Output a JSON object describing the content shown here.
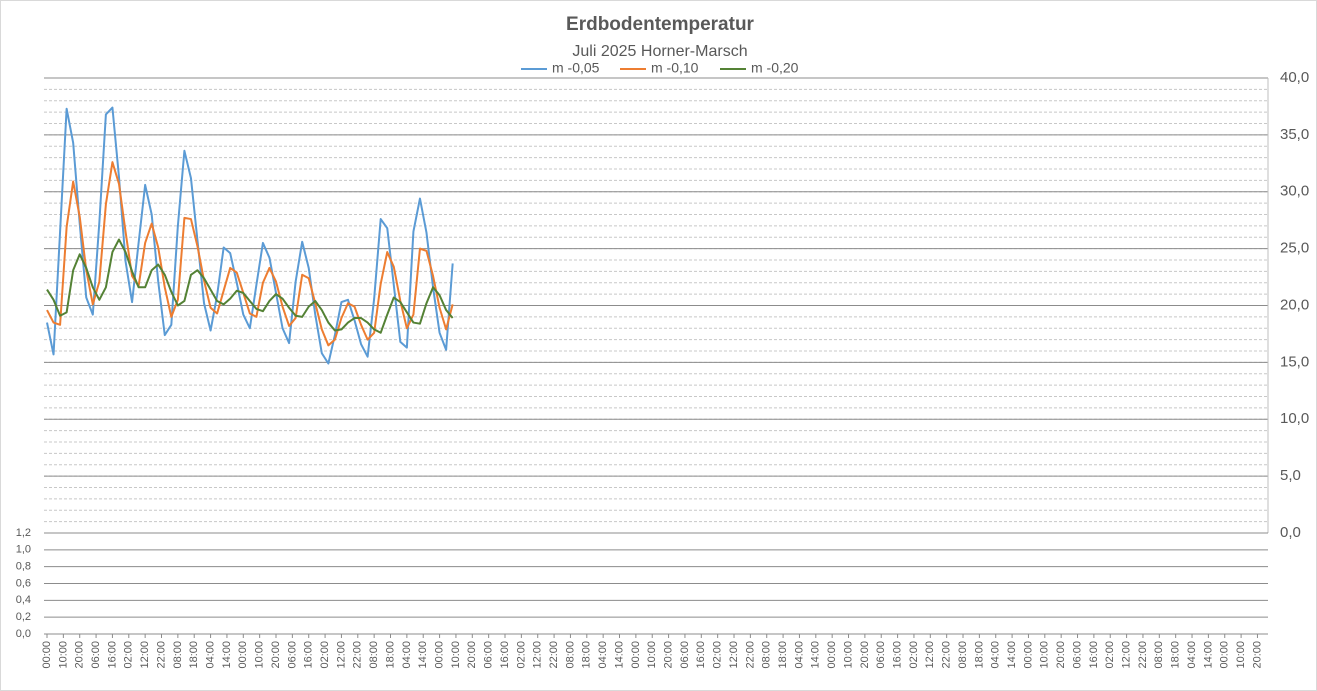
{
  "chart_data": [
    {
      "type": "line",
      "title": "Erdbodentemperatur",
      "subtitle": "Juli 2025 Horner-Marsch",
      "x": [
        0,
        4,
        8,
        12,
        16,
        20,
        24,
        28,
        32,
        36,
        40,
        44,
        48,
        52,
        56,
        60,
        64,
        68,
        72,
        76,
        80,
        84,
        88,
        92,
        96,
        100,
        104,
        108,
        112,
        116,
        120,
        124,
        128,
        132,
        136,
        140,
        144,
        148,
        152,
        156,
        160,
        164,
        168,
        172,
        176,
        180,
        184,
        188,
        192,
        196,
        200,
        204,
        208,
        212,
        216,
        220,
        224,
        228,
        232,
        236,
        240,
        244,
        248
      ],
      "series": [
        {
          "name": "m -0,05",
          "color": "#5b9bd5",
          "values": [
            18.5,
            15.7,
            26.5,
            37.3,
            34.3,
            27.2,
            20.7,
            19.2,
            27.3,
            36.8,
            37.4,
            31.3,
            23.9,
            20.3,
            25.5,
            30.6,
            28,
            22.1,
            17.4,
            18.3,
            27,
            33.6,
            31.2,
            25.7,
            20.2,
            17.8,
            20.9,
            25.1,
            24.6,
            22,
            19.2,
            18,
            21.8,
            25.5,
            24.2,
            21.1,
            18,
            16.7,
            22.1,
            25.6,
            23.3,
            19.2,
            15.8,
            14.9,
            17.4,
            20.3,
            20.5,
            18.7,
            16.6,
            15.5,
            20.6,
            27.6,
            26.8,
            21.8,
            16.8,
            16.3,
            26.5,
            29.4,
            26.4,
            21.6,
            17.6,
            16.1,
            23.7
          ]
        },
        {
          "name": "m -0,10",
          "color": "#ed7d31",
          "values": [
            19.6,
            18.5,
            18.3,
            26.9,
            30.9,
            27.8,
            23.1,
            20.1,
            22.1,
            28.9,
            32.6,
            30.7,
            26.5,
            22.6,
            21.7,
            25.5,
            27.2,
            25.1,
            21.6,
            19,
            20.5,
            27.7,
            27.6,
            25.2,
            22.2,
            19.8,
            19.3,
            21.3,
            23.3,
            22.9,
            21.1,
            19.3,
            19,
            22,
            23.3,
            22.1,
            19.9,
            18.2,
            18.9,
            22.7,
            22.4,
            20.2,
            17.9,
            16.5,
            17,
            18.9,
            20.2,
            19.9,
            18.3,
            17,
            17.6,
            21.9,
            24.7,
            23.4,
            20.4,
            18,
            19.2,
            25,
            24.8,
            22.6,
            19.8,
            17.9,
            20.1
          ]
        },
        {
          "name": "m -0,20",
          "color": "#548235",
          "values": [
            21.4,
            20.5,
            19.1,
            19.4,
            23.1,
            24.5,
            23.3,
            21.6,
            20.5,
            21.6,
            24.7,
            25.8,
            24.7,
            23,
            21.6,
            21.6,
            23.1,
            23.6,
            22.7,
            21.2,
            20,
            20.4,
            22.7,
            23.1,
            22.4,
            21.4,
            20.4,
            20.1,
            20.6,
            21.3,
            21.1,
            20.4,
            19.7,
            19.5,
            20.4,
            21,
            20.6,
            19.8,
            19.1,
            19,
            19.9,
            20.4,
            19.6,
            18.5,
            17.8,
            17.9,
            18.5,
            18.9,
            18.9,
            18.5,
            17.9,
            17.6,
            19.2,
            20.7,
            20.3,
            19.4,
            18.5,
            18.4,
            20.2,
            21.6,
            20.9,
            19.6,
            18.9
          ]
        }
      ],
      "ylim": [
        0,
        40
      ],
      "yticks": [
        {
          "value": 0,
          "label": "0,0"
        },
        {
          "value": 5,
          "label": "5,0"
        },
        {
          "value": 10,
          "label": "10,0"
        },
        {
          "value": 15,
          "label": "15,0"
        },
        {
          "value": 20,
          "label": "20,0"
        },
        {
          "value": 25,
          "label": "25,0"
        },
        {
          "value": 30,
          "label": "30,0"
        },
        {
          "value": 35,
          "label": "35,0"
        },
        {
          "value": 40,
          "label": "40,0"
        }
      ],
      "yminor_step": 1,
      "grid": true,
      "legend": "top",
      "xlim": [
        0,
        744
      ],
      "xticks": [
        {
          "value": 0,
          "label": "00:00"
        },
        {
          "value": 10,
          "label": "10:00"
        },
        {
          "value": 20,
          "label": "20:00"
        },
        {
          "value": 30,
          "label": "06:00"
        },
        {
          "value": 40,
          "label": "16:00"
        },
        {
          "value": 50,
          "label": "02:00"
        },
        {
          "value": 60,
          "label": "12:00"
        },
        {
          "value": 70,
          "label": "22:00"
        },
        {
          "value": 80,
          "label": "08:00"
        },
        {
          "value": 90,
          "label": "18:00"
        },
        {
          "value": 100,
          "label": "04:00"
        },
        {
          "value": 110,
          "label": "14:00"
        },
        {
          "value": 120,
          "label": "00:00"
        },
        {
          "value": 130,
          "label": "10:00"
        },
        {
          "value": 140,
          "label": "20:00"
        },
        {
          "value": 150,
          "label": "06:00"
        },
        {
          "value": 160,
          "label": "16:00"
        },
        {
          "value": 170,
          "label": "02:00"
        },
        {
          "value": 180,
          "label": "12:00"
        },
        {
          "value": 190,
          "label": "22:00"
        },
        {
          "value": 200,
          "label": "08:00"
        },
        {
          "value": 210,
          "label": "18:00"
        },
        {
          "value": 220,
          "label": "04:00"
        },
        {
          "value": 230,
          "label": "14:00"
        },
        {
          "value": 240,
          "label": "00:00"
        },
        {
          "value": 250,
          "label": "10:00"
        },
        {
          "value": 260,
          "label": "20:00"
        },
        {
          "value": 270,
          "label": "06:00"
        },
        {
          "value": 280,
          "label": "16:00"
        },
        {
          "value": 290,
          "label": "02:00"
        },
        {
          "value": 300,
          "label": "12:00"
        },
        {
          "value": 310,
          "label": "22:00"
        },
        {
          "value": 320,
          "label": "08:00"
        },
        {
          "value": 330,
          "label": "18:00"
        },
        {
          "value": 340,
          "label": "04:00"
        },
        {
          "value": 350,
          "label": "14:00"
        },
        {
          "value": 360,
          "label": "00:00"
        },
        {
          "value": 370,
          "label": "10:00"
        },
        {
          "value": 380,
          "label": "20:00"
        },
        {
          "value": 390,
          "label": "06:00"
        },
        {
          "value": 400,
          "label": "16:00"
        },
        {
          "value": 410,
          "label": "02:00"
        },
        {
          "value": 420,
          "label": "12:00"
        },
        {
          "value": 430,
          "label": "22:00"
        },
        {
          "value": 440,
          "label": "08:00"
        },
        {
          "value": 450,
          "label": "18:00"
        },
        {
          "value": 460,
          "label": "04:00"
        },
        {
          "value": 470,
          "label": "14:00"
        },
        {
          "value": 480,
          "label": "00:00"
        },
        {
          "value": 490,
          "label": "10:00"
        },
        {
          "value": 500,
          "label": "20:00"
        },
        {
          "value": 510,
          "label": "06:00"
        },
        {
          "value": 520,
          "label": "16:00"
        },
        {
          "value": 530,
          "label": "02:00"
        },
        {
          "value": 540,
          "label": "12:00"
        },
        {
          "value": 550,
          "label": "22:00"
        },
        {
          "value": 560,
          "label": "08:00"
        },
        {
          "value": 570,
          "label": "18:00"
        },
        {
          "value": 580,
          "label": "04:00"
        },
        {
          "value": 590,
          "label": "14:00"
        },
        {
          "value": 600,
          "label": "00:00"
        },
        {
          "value": 610,
          "label": "10:00"
        },
        {
          "value": 620,
          "label": "20:00"
        },
        {
          "value": 630,
          "label": "06:00"
        },
        {
          "value": 640,
          "label": "16:00"
        },
        {
          "value": 650,
          "label": "02:00"
        },
        {
          "value": 660,
          "label": "12:00"
        },
        {
          "value": 670,
          "label": "22:00"
        },
        {
          "value": 680,
          "label": "08:00"
        },
        {
          "value": 690,
          "label": "18:00"
        },
        {
          "value": 700,
          "label": "04:00"
        },
        {
          "value": 710,
          "label": "14:00"
        },
        {
          "value": 720,
          "label": "00:00"
        },
        {
          "value": 730,
          "label": "10:00"
        },
        {
          "value": 740,
          "label": "20:00"
        }
      ]
    },
    {
      "type": "line",
      "ylim": [
        0,
        1.2
      ],
      "yticks": [
        {
          "value": 0,
          "label": "0,0"
        },
        {
          "value": 0.2,
          "label": "0,2"
        },
        {
          "value": 0.4,
          "label": "0,4"
        },
        {
          "value": 0.6,
          "label": "0,6"
        },
        {
          "value": 0.8,
          "label": "0,8"
        },
        {
          "value": 1,
          "label": "1,0"
        },
        {
          "value": 1.2,
          "label": "1,2"
        }
      ],
      "grid": true
    }
  ]
}
